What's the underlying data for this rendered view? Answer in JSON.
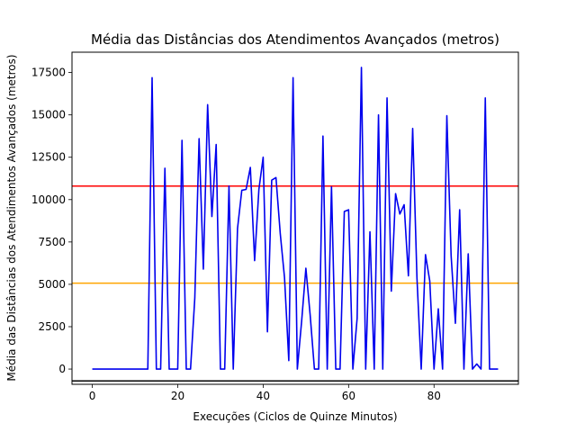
{
  "chart_data": {
    "type": "line",
    "title": "Média das Distâncias dos Atendimentos Avançados (metros)",
    "xlabel": "Execuções (Ciclos de Quinze Minutos)",
    "ylabel": "Média das Distâncias dos Atendimentos Avançados (metros)",
    "xlim": [
      -4.75,
      99.75
    ],
    "ylim": [
      -900,
      18700
    ],
    "xticks": [
      0,
      20,
      40,
      60,
      80
    ],
    "yticks": [
      0,
      2500,
      5000,
      7500,
      10000,
      12500,
      15000,
      17500
    ],
    "xtick_labels": [
      "0",
      "20",
      "40",
      "60",
      "80"
    ],
    "ytick_labels": [
      "0",
      "2500",
      "5000",
      "7500",
      "10000",
      "12500",
      "15000",
      "17500"
    ],
    "grid": false,
    "series": [
      {
        "color": "#0000ee",
        "x": [
          0,
          1,
          2,
          3,
          4,
          5,
          6,
          7,
          8,
          9,
          10,
          11,
          12,
          13,
          14,
          15,
          16,
          17,
          18,
          19,
          20,
          21,
          22,
          23,
          24,
          25,
          26,
          27,
          28,
          29,
          30,
          31,
          32,
          33,
          34,
          35,
          36,
          37,
          38,
          39,
          40,
          41,
          42,
          43,
          44,
          45,
          46,
          47,
          48,
          49,
          50,
          51,
          52,
          53,
          54,
          55,
          56,
          57,
          58,
          59,
          60,
          61,
          62,
          63,
          64,
          65,
          66,
          67,
          68,
          69,
          70,
          71,
          72,
          73,
          74,
          75,
          76,
          77,
          78,
          79,
          80,
          81,
          82,
          83,
          84,
          85,
          86,
          87,
          88,
          89,
          90,
          91,
          92,
          93,
          94,
          95
        ],
        "y": [
          0,
          0,
          0,
          0,
          0,
          0,
          0,
          0,
          0,
          0,
          0,
          0,
          0,
          0,
          17200,
          0,
          0,
          11850,
          0,
          0,
          0,
          13500,
          0,
          0,
          4200,
          13600,
          5900,
          15600,
          9000,
          13250,
          0,
          0,
          10800,
          0,
          8300,
          10550,
          10600,
          11900,
          6400,
          10600,
          12500,
          2200,
          11150,
          11300,
          8000,
          5400,
          500,
          17200,
          0,
          2800,
          5950,
          3200,
          0,
          0,
          13750,
          0,
          10750,
          0,
          0,
          9300,
          9400,
          0,
          3000,
          17800,
          0,
          8100,
          0,
          15000,
          0,
          16000,
          4600,
          10350,
          9150,
          9700,
          5500,
          14200,
          5400,
          0,
          6750,
          5200,
          0,
          3550,
          0,
          14950,
          6700,
          2700,
          9400,
          0,
          6800,
          0,
          300,
          0,
          16000,
          0,
          0,
          0
        ]
      }
    ],
    "hlines": [
      {
        "y": 10800,
        "color": "#ff0000"
      },
      {
        "y": 5070,
        "color": "#ffa500"
      },
      {
        "y": -700,
        "color": "#000000"
      }
    ]
  }
}
